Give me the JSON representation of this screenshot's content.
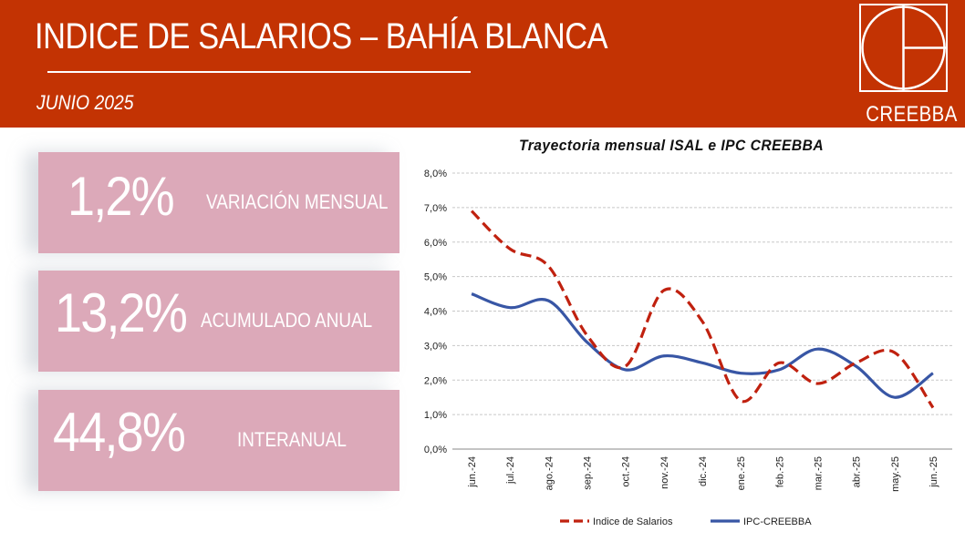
{
  "header": {
    "title": "INDICE DE SALARIOS – BAHÍA BLANCA",
    "subtitle": "JUNIO 2025",
    "logo_text": "CREEBBA",
    "background_color": "#c33303"
  },
  "panels": [
    {
      "value": "1,2%",
      "label": "VARIACIÓN MENSUAL"
    },
    {
      "value": "13,2%",
      "label": "ACUMULADO ANUAL"
    },
    {
      "value": "44,8%",
      "label": "INTERANUAL"
    }
  ],
  "panel_color": "#dca9b9",
  "chart_data": {
    "type": "line",
    "title": "Trayectoria mensual ISAL e IPC CREEBBA",
    "categories": [
      "jun.-24",
      "jul.-24",
      "ago.-24",
      "sep.-24",
      "oct.-24",
      "nov.-24",
      "dic.-24",
      "ene.-25",
      "feb.-25",
      "mar.-25",
      "abr.-25",
      "may.-25",
      "jun.-25"
    ],
    "series": [
      {
        "name": "Indice de Salarios",
        "color": "#c0210f",
        "dashed": true,
        "values": [
          6.9,
          5.8,
          5.3,
          3.3,
          2.4,
          4.6,
          3.7,
          1.4,
          2.5,
          1.9,
          2.5,
          2.8,
          1.2
        ]
      },
      {
        "name": "IPC-CREEBBA",
        "color": "#3856a5",
        "dashed": false,
        "values": [
          4.5,
          4.1,
          4.3,
          3.1,
          2.3,
          2.7,
          2.5,
          2.2,
          2.3,
          2.9,
          2.4,
          1.5,
          2.2
        ]
      }
    ],
    "yticks": [
      "0,0%",
      "1,0%",
      "2,0%",
      "3,0%",
      "4,0%",
      "5,0%",
      "6,0%",
      "7,0%",
      "8,0%"
    ],
    "ylim": [
      0,
      8
    ],
    "grid": true,
    "legend_position": "bottom"
  }
}
